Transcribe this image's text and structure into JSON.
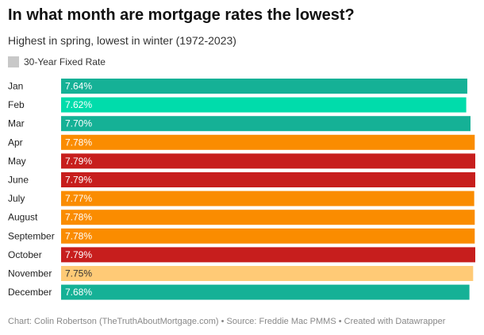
{
  "chart_data": {
    "type": "bar",
    "orientation": "horizontal",
    "title": "In what month are mortgage rates the lowest?",
    "subtitle": "Highest in spring, lowest in winter (1972-2023)",
    "legend": [
      {
        "label": "30-Year Fixed Rate",
        "color": "#c8c8c8"
      }
    ],
    "categories": [
      "Jan",
      "Feb",
      "Mar",
      "Apr",
      "May",
      "June",
      "July",
      "August",
      "September",
      "October",
      "November",
      "December"
    ],
    "series": [
      {
        "name": "30-Year Fixed Rate",
        "values": [
          7.64,
          7.62,
          7.7,
          7.78,
          7.79,
          7.79,
          7.77,
          7.78,
          7.78,
          7.79,
          7.75,
          7.68
        ],
        "labels": [
          "7.64%",
          "7.62%",
          "7.70%",
          "7.78%",
          "7.79%",
          "7.79%",
          "7.77%",
          "7.78%",
          "7.78%",
          "7.79%",
          "7.75%",
          "7.68%"
        ],
        "colors": [
          "#15b196",
          "#00dcab",
          "#15b196",
          "#fa8c00",
          "#c71e1d",
          "#c71e1d",
          "#fa8c00",
          "#fa8c00",
          "#fa8c00",
          "#c71e1d",
          "#ffca76",
          "#15b196"
        ],
        "label_colors": [
          "#ffffff",
          "#ffffff",
          "#ffffff",
          "#ffffff",
          "#ffffff",
          "#ffffff",
          "#ffffff",
          "#ffffff",
          "#ffffff",
          "#ffffff",
          "#333333",
          "#ffffff"
        ]
      }
    ],
    "xlim": [
      0,
      7.79
    ],
    "grid": false
  },
  "footer": "Chart: Colin Robertson (TheTruthAboutMortgage.com) • Source: Freddie Mac PMMS • Created with Datawrapper"
}
